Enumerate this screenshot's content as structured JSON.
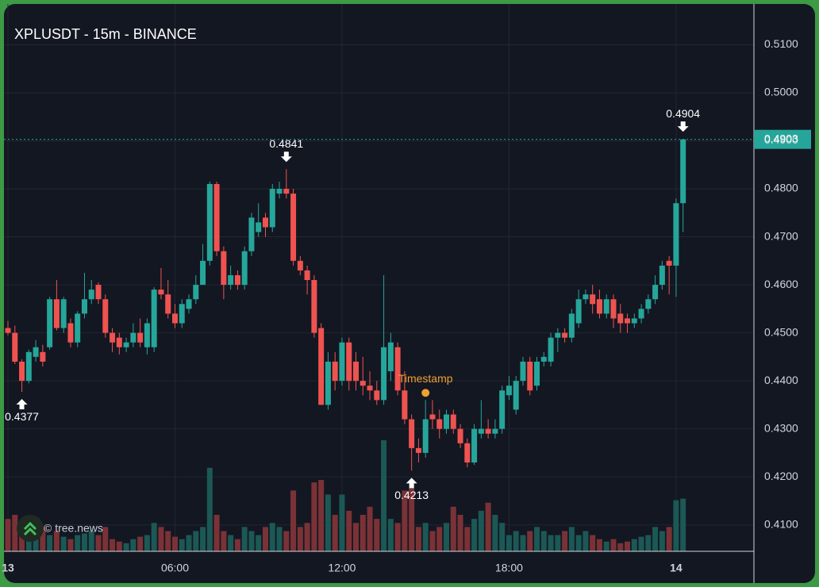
{
  "chart_data": {
    "type": "candlestick",
    "title": "XPLUSDT - 15m - BINANCE",
    "watermark": "© tree.news",
    "categories": [
      "13",
      null,
      null,
      null,
      null,
      null,
      null,
      null,
      null,
      null,
      null,
      null,
      null,
      null,
      null,
      null,
      null,
      null,
      null,
      null,
      null,
      null,
      null,
      null,
      "06:00",
      null,
      null,
      null,
      null,
      null,
      null,
      null,
      null,
      null,
      null,
      null,
      null,
      null,
      null,
      null,
      null,
      null,
      null,
      null,
      null,
      null,
      null,
      null,
      "12:00",
      null,
      null,
      null,
      null,
      null,
      null,
      null,
      null,
      null,
      null,
      null,
      null,
      null,
      null,
      null,
      null,
      null,
      null,
      null,
      null,
      null,
      null,
      null,
      "18:00",
      null,
      null,
      null,
      null,
      null,
      null,
      null,
      null,
      null,
      null,
      null,
      null,
      null,
      null,
      null,
      null,
      null,
      null,
      null,
      null,
      null,
      null,
      null,
      "14",
      null
    ],
    "ohlc": [
      [
        0.451,
        0.4525,
        0.4495,
        0.45
      ],
      [
        0.45,
        0.4515,
        0.4435,
        0.444
      ],
      [
        0.444,
        0.4445,
        0.4377,
        0.44
      ],
      [
        0.44,
        0.4465,
        0.4395,
        0.446
      ],
      [
        0.445,
        0.4485,
        0.444,
        0.447
      ],
      [
        0.446,
        0.4475,
        0.443,
        0.444
      ],
      [
        0.447,
        0.4575,
        0.4465,
        0.457
      ],
      [
        0.457,
        0.461,
        0.4505,
        0.451
      ],
      [
        0.451,
        0.4575,
        0.45,
        0.457
      ],
      [
        0.452,
        0.453,
        0.447,
        0.448
      ],
      [
        0.448,
        0.4545,
        0.447,
        0.454
      ],
      [
        0.454,
        0.4625,
        0.453,
        0.457
      ],
      [
        0.457,
        0.461,
        0.456,
        0.459
      ],
      [
        0.46,
        0.4605,
        0.456,
        0.457
      ],
      [
        0.457,
        0.458,
        0.449,
        0.45
      ],
      [
        0.45,
        0.451,
        0.446,
        0.448
      ],
      [
        0.449,
        0.45,
        0.4455,
        0.447
      ],
      [
        0.447,
        0.449,
        0.446,
        0.448
      ],
      [
        0.448,
        0.452,
        0.447,
        0.45
      ],
      [
        0.45,
        0.453,
        0.447,
        0.448
      ],
      [
        0.447,
        0.453,
        0.4455,
        0.452
      ],
      [
        0.447,
        0.4595,
        0.446,
        0.459
      ],
      [
        0.459,
        0.4635,
        0.457,
        0.458
      ],
      [
        0.458,
        0.461,
        0.453,
        0.454
      ],
      [
        0.454,
        0.456,
        0.451,
        0.452
      ],
      [
        0.452,
        0.457,
        0.451,
        0.456
      ],
      [
        0.455,
        0.458,
        0.454,
        0.457
      ],
      [
        0.457,
        0.462,
        0.456,
        0.46
      ],
      [
        0.46,
        0.4685,
        0.46,
        0.465
      ],
      [
        0.465,
        0.4815,
        0.464,
        0.481
      ],
      [
        0.481,
        0.4815,
        0.466,
        0.467
      ],
      [
        0.467,
        0.468,
        0.457,
        0.46
      ],
      [
        0.46,
        0.464,
        0.459,
        0.462
      ],
      [
        0.462,
        0.463,
        0.459,
        0.46
      ],
      [
        0.46,
        0.468,
        0.459,
        0.467
      ],
      [
        0.467,
        0.475,
        0.466,
        0.474
      ],
      [
        0.471,
        0.477,
        0.47,
        0.473
      ],
      [
        0.474,
        0.475,
        0.47,
        0.472
      ],
      [
        0.472,
        0.481,
        0.471,
        0.48
      ],
      [
        0.479,
        0.4815,
        0.478,
        0.48
      ],
      [
        0.48,
        0.4841,
        0.478,
        0.479
      ],
      [
        0.479,
        0.48,
        0.464,
        0.465
      ],
      [
        0.465,
        0.466,
        0.462,
        0.463
      ],
      [
        0.463,
        0.464,
        0.458,
        0.461
      ],
      [
        0.461,
        0.462,
        0.449,
        0.45
      ],
      [
        0.451,
        0.452,
        0.435,
        0.435
      ],
      [
        0.435,
        0.446,
        0.434,
        0.444
      ],
      [
        0.444,
        0.446,
        0.438,
        0.44
      ],
      [
        0.44,
        0.449,
        0.439,
        0.448
      ],
      [
        0.448,
        0.449,
        0.438,
        0.44
      ],
      [
        0.444,
        0.446,
        0.438,
        0.44
      ],
      [
        0.44,
        0.445,
        0.437,
        0.439
      ],
      [
        0.439,
        0.442,
        0.436,
        0.438
      ],
      [
        0.438,
        0.44,
        0.435,
        0.436
      ],
      [
        0.436,
        0.462,
        0.435,
        0.447
      ],
      [
        0.442,
        0.45,
        0.44,
        0.448
      ],
      [
        0.447,
        0.448,
        0.437,
        0.438
      ],
      [
        0.438,
        0.442,
        0.431,
        0.432
      ],
      [
        0.432,
        0.433,
        0.4213,
        0.426
      ],
      [
        0.426,
        0.428,
        0.423,
        0.425
      ],
      [
        0.425,
        0.436,
        0.424,
        0.432
      ],
      [
        0.433,
        0.436,
        0.43,
        0.432
      ],
      [
        0.432,
        0.434,
        0.428,
        0.43
      ],
      [
        0.43,
        0.434,
        0.429,
        0.433
      ],
      [
        0.433,
        0.434,
        0.429,
        0.43
      ],
      [
        0.43,
        0.431,
        0.426,
        0.427
      ],
      [
        0.427,
        0.428,
        0.422,
        0.423
      ],
      [
        0.423,
        0.431,
        0.4225,
        0.43
      ],
      [
        0.429,
        0.436,
        0.428,
        0.43
      ],
      [
        0.43,
        0.432,
        0.428,
        0.429
      ],
      [
        0.429,
        0.432,
        0.428,
        0.43
      ],
      [
        0.43,
        0.439,
        0.429,
        0.438
      ],
      [
        0.437,
        0.441,
        0.436,
        0.439
      ],
      [
        0.434,
        0.441,
        0.433,
        0.44
      ],
      [
        0.44,
        0.445,
        0.439,
        0.444
      ],
      [
        0.444,
        0.445,
        0.437,
        0.438
      ],
      [
        0.439,
        0.445,
        0.438,
        0.444
      ],
      [
        0.444,
        0.446,
        0.443,
        0.445
      ],
      [
        0.444,
        0.45,
        0.443,
        0.449
      ],
      [
        0.449,
        0.451,
        0.446,
        0.45
      ],
      [
        0.45,
        0.451,
        0.448,
        0.449
      ],
      [
        0.449,
        0.455,
        0.448,
        0.454
      ],
      [
        0.452,
        0.459,
        0.451,
        0.457
      ],
      [
        0.457,
        0.459,
        0.456,
        0.458
      ],
      [
        0.458,
        0.46,
        0.454,
        0.456
      ],
      [
        0.457,
        0.459,
        0.453,
        0.454
      ],
      [
        0.454,
        0.458,
        0.453,
        0.457
      ],
      [
        0.457,
        0.458,
        0.451,
        0.453
      ],
      [
        0.454,
        0.456,
        0.45,
        0.452
      ],
      [
        0.453,
        0.454,
        0.45,
        0.452
      ],
      [
        0.452,
        0.454,
        0.451,
        0.453
      ],
      [
        0.453,
        0.456,
        0.452,
        0.455
      ],
      [
        0.455,
        0.458,
        0.454,
        0.457
      ],
      [
        0.457,
        0.462,
        0.456,
        0.46
      ],
      [
        0.46,
        0.465,
        0.459,
        0.464
      ],
      [
        0.465,
        0.466,
        0.458,
        0.464
      ],
      [
        0.464,
        0.478,
        0.4575,
        0.477
      ],
      [
        0.477,
        0.4904,
        0.471,
        0.4903
      ]
    ],
    "volume": [
      40,
      45,
      25,
      20,
      22,
      30,
      20,
      25,
      18,
      15,
      20,
      22,
      25,
      20,
      30,
      15,
      12,
      10,
      15,
      18,
      20,
      35,
      30,
      25,
      18,
      15,
      20,
      25,
      30,
      103,
      45,
      25,
      20,
      15,
      30,
      25,
      20,
      30,
      35,
      30,
      25,
      75,
      30,
      35,
      85,
      88,
      70,
      45,
      70,
      50,
      35,
      45,
      55,
      40,
      137,
      40,
      35,
      75,
      78,
      30,
      35,
      25,
      30,
      35,
      55,
      45,
      30,
      40,
      50,
      60,
      45,
      35,
      20,
      25,
      20,
      25,
      30,
      25,
      20,
      20,
      25,
      30,
      20,
      25,
      20,
      15,
      12,
      15,
      10,
      12,
      15,
      18,
      20,
      30,
      25,
      30,
      63,
      65
    ],
    "up_color": "#26a69a",
    "down_color": "#ef5350",
    "volume_up_color": "#1c5855",
    "volume_down_color": "#7a3236",
    "ylim": [
      0.4045,
      0.5185
    ],
    "yticks": [
      {
        "value": 0.41,
        "label": "0.4100"
      },
      {
        "value": 0.42,
        "label": "0.4200"
      },
      {
        "value": 0.43,
        "label": "0.4300"
      },
      {
        "value": 0.44,
        "label": "0.4400"
      },
      {
        "value": 0.45,
        "label": "0.4500"
      },
      {
        "value": 0.46,
        "label": "0.4600"
      },
      {
        "value": 0.47,
        "label": "0.4700"
      },
      {
        "value": 0.48,
        "label": "0.4800"
      },
      {
        "value": 0.49,
        "label": "0.4900"
      },
      {
        "value": 0.5,
        "label": "0.5000"
      },
      {
        "value": 0.51,
        "label": "0.5100"
      }
    ],
    "grid": true,
    "last_price": 0.4903,
    "markers": [
      {
        "value": 0.4377,
        "at": "low"
      },
      {
        "value": 0.4841,
        "at": "high"
      },
      {
        "value": 0.4213,
        "at": "low"
      },
      {
        "value": 0.4904,
        "at": "high"
      }
    ],
    "event": {
      "text": "Timestamp",
      "index": 60,
      "value": 0.4375,
      "color": "#f0a030"
    }
  }
}
